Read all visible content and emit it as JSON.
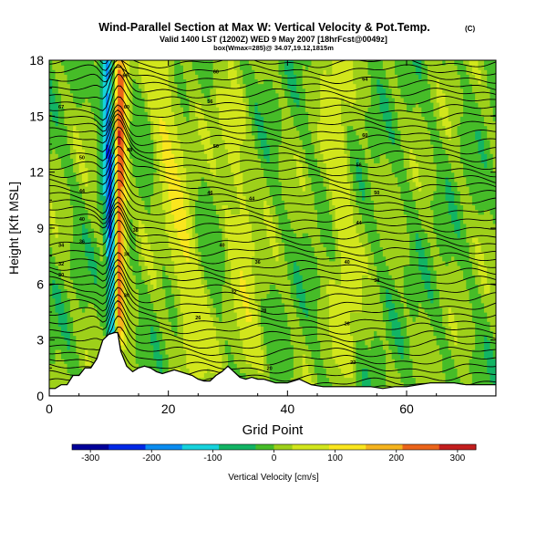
{
  "chart_data": {
    "type": "heatmap",
    "title": "Wind-Parallel Section at Max W: Vertical Velocity & Pot.Temp.",
    "title_mark": "(C)",
    "subtitle": "Valid 1400 LST (1200Z) WED 9 May 2007 [18hrFcst@0049z]",
    "subtitle2": "box(Wmax=285)@ 34.07,19.12,1815m",
    "xlabel": "Grid Point",
    "ylabel": "Height [Kft MSL]",
    "xlim": [
      0,
      75
    ],
    "ylim": [
      0,
      18
    ],
    "xticks": [
      "0",
      "20",
      "40",
      "60"
    ],
    "xtick_values": [
      0,
      20,
      40,
      60
    ],
    "yticks": [
      "0",
      "3",
      "6",
      "9",
      "12",
      "15",
      "18"
    ],
    "ytick_values": [
      0,
      3,
      6,
      9,
      12,
      15,
      18
    ],
    "terrain_kft": [
      [
        0,
        0.4
      ],
      [
        1,
        0.4
      ],
      [
        2,
        0.6
      ],
      [
        3,
        0.6
      ],
      [
        4,
        1.1
      ],
      [
        5,
        1.1
      ],
      [
        6,
        1.5
      ],
      [
        7,
        1.5
      ],
      [
        8,
        2.0
      ],
      [
        8.5,
        2.5
      ],
      [
        9,
        3.0
      ],
      [
        10,
        3.3
      ],
      [
        11,
        3.4
      ],
      [
        11.5,
        3.4
      ],
      [
        12,
        2.4
      ],
      [
        13,
        1.6
      ],
      [
        14,
        1.3
      ],
      [
        15,
        1.5
      ],
      [
        16,
        1.6
      ],
      [
        17,
        1.5
      ],
      [
        18,
        1.3
      ],
      [
        19,
        1.2
      ],
      [
        20,
        1.3
      ],
      [
        21,
        1.4
      ],
      [
        22,
        1.3
      ],
      [
        23,
        1.2
      ],
      [
        24,
        1.1
      ],
      [
        25,
        0.9
      ],
      [
        26,
        0.8
      ],
      [
        27,
        0.8
      ],
      [
        28,
        1.1
      ],
      [
        29,
        1.3
      ],
      [
        30,
        1.6
      ],
      [
        31,
        1.3
      ],
      [
        32,
        1.0
      ],
      [
        33,
        0.9
      ],
      [
        34,
        1.0
      ],
      [
        35,
        0.9
      ],
      [
        36,
        0.9
      ],
      [
        37,
        0.8
      ],
      [
        38,
        0.7
      ],
      [
        40,
        0.7
      ],
      [
        42,
        0.9
      ],
      [
        44,
        0.6
      ],
      [
        46,
        0.5
      ],
      [
        48,
        0.5
      ],
      [
        50,
        0.5
      ],
      [
        52,
        0.5
      ],
      [
        54,
        0.5
      ],
      [
        56,
        0.4
      ],
      [
        58,
        0.5
      ],
      [
        60,
        0.5
      ],
      [
        62,
        0.6
      ],
      [
        64,
        0.7
      ],
      [
        66,
        0.7
      ],
      [
        68,
        0.7
      ],
      [
        70,
        0.6
      ],
      [
        72,
        0.6
      ],
      [
        75,
        0.6
      ]
    ],
    "velocity_features": [
      {
        "kind": "updraft",
        "x_bottom": 11.7,
        "x_top": 11.9,
        "h_bottom": 3.5,
        "h_top": 18,
        "peak": 285
      },
      {
        "kind": "downdraft",
        "x_bottom": 10.9,
        "x_top": 9.8,
        "h_bottom": 3.0,
        "h_top": 18,
        "peak": -240
      },
      {
        "kind": "updraft",
        "x_bottom": 25,
        "x_top": 18,
        "h_bottom": 2,
        "h_top": 18,
        "peak": 90
      },
      {
        "kind": "updraft",
        "x_bottom": 34,
        "x_top": 30,
        "h_bottom": 2,
        "h_top": 16,
        "peak": 60
      },
      {
        "kind": "updraft",
        "x_bottom": 50,
        "x_top": 48,
        "h_bottom": 2,
        "h_top": 18,
        "peak": 50
      }
    ],
    "isentrope_labels": [
      {
        "x": 2,
        "h": 15.5,
        "text": "67"
      },
      {
        "x": 12.8,
        "h": 17.2,
        "text": "66"
      },
      {
        "x": 13,
        "h": 15.5,
        "text": "60"
      },
      {
        "x": 13.5,
        "h": 13.2,
        "text": "48"
      },
      {
        "x": 14.5,
        "h": 8.9,
        "text": "38"
      },
      {
        "x": 13,
        "h": 7.6,
        "text": "34"
      },
      {
        "x": 13,
        "h": 5.4,
        "text": "30"
      },
      {
        "x": 5.5,
        "h": 12.8,
        "text": "50"
      },
      {
        "x": 5.5,
        "h": 11.0,
        "text": "44"
      },
      {
        "x": 5.5,
        "h": 9.5,
        "text": "40"
      },
      {
        "x": 5.5,
        "h": 8.3,
        "text": "36"
      },
      {
        "x": 2,
        "h": 8.1,
        "text": "34"
      },
      {
        "x": 2,
        "h": 7.1,
        "text": "32"
      },
      {
        "x": 2,
        "h": 6.5,
        "text": "30"
      },
      {
        "x": 28,
        "h": 17.4,
        "text": "60"
      },
      {
        "x": 27,
        "h": 15.8,
        "text": "56"
      },
      {
        "x": 28,
        "h": 13.4,
        "text": "50"
      },
      {
        "x": 27,
        "h": 10.9,
        "text": "46"
      },
      {
        "x": 34,
        "h": 10.6,
        "text": "44"
      },
      {
        "x": 29,
        "h": 8.1,
        "text": "40"
      },
      {
        "x": 35,
        "h": 7.2,
        "text": "36"
      },
      {
        "x": 31,
        "h": 5.6,
        "text": "32"
      },
      {
        "x": 36,
        "h": 4.6,
        "text": "28"
      },
      {
        "x": 25,
        "h": 4.2,
        "text": "26"
      },
      {
        "x": 37,
        "h": 1.5,
        "text": "20"
      },
      {
        "x": 53,
        "h": 17.0,
        "text": "64"
      },
      {
        "x": 53,
        "h": 14.0,
        "text": "60"
      },
      {
        "x": 52,
        "h": 12.4,
        "text": "56"
      },
      {
        "x": 55,
        "h": 10.9,
        "text": "50"
      },
      {
        "x": 52,
        "h": 9.3,
        "text": "44"
      },
      {
        "x": 50,
        "h": 7.2,
        "text": "40"
      },
      {
        "x": 55,
        "h": 6.2,
        "text": "38"
      },
      {
        "x": 50,
        "h": 3.9,
        "text": "26"
      },
      {
        "x": 51,
        "h": 1.8,
        "text": "22"
      }
    ]
  },
  "colorbar": {
    "label": "Vertical Velocity [cm/s]",
    "range": [
      -330,
      330
    ],
    "tick_labels": [
      "-300",
      "-200",
      "-100",
      "0",
      "100",
      "200",
      "300"
    ],
    "tick_values": [
      -300,
      -200,
      -100,
      0,
      100,
      200,
      300
    ],
    "stops": [
      {
        "v": -330,
        "color": "#00009a"
      },
      {
        "v": -270,
        "color": "#0028e6"
      },
      {
        "v": -210,
        "color": "#0a8cf0"
      },
      {
        "v": -150,
        "color": "#16d2dc"
      },
      {
        "v": -90,
        "color": "#12b464"
      },
      {
        "v": -30,
        "color": "#46bc28"
      },
      {
        "v": 0,
        "color": "#9ed01a"
      },
      {
        "v": 30,
        "color": "#d2e61c"
      },
      {
        "v": 90,
        "color": "#fae61e"
      },
      {
        "v": 150,
        "color": "#f5b41e"
      },
      {
        "v": 210,
        "color": "#eb641a"
      },
      {
        "v": 270,
        "color": "#c31e1e"
      },
      {
        "v": 330,
        "color": "#7a1296"
      }
    ]
  }
}
